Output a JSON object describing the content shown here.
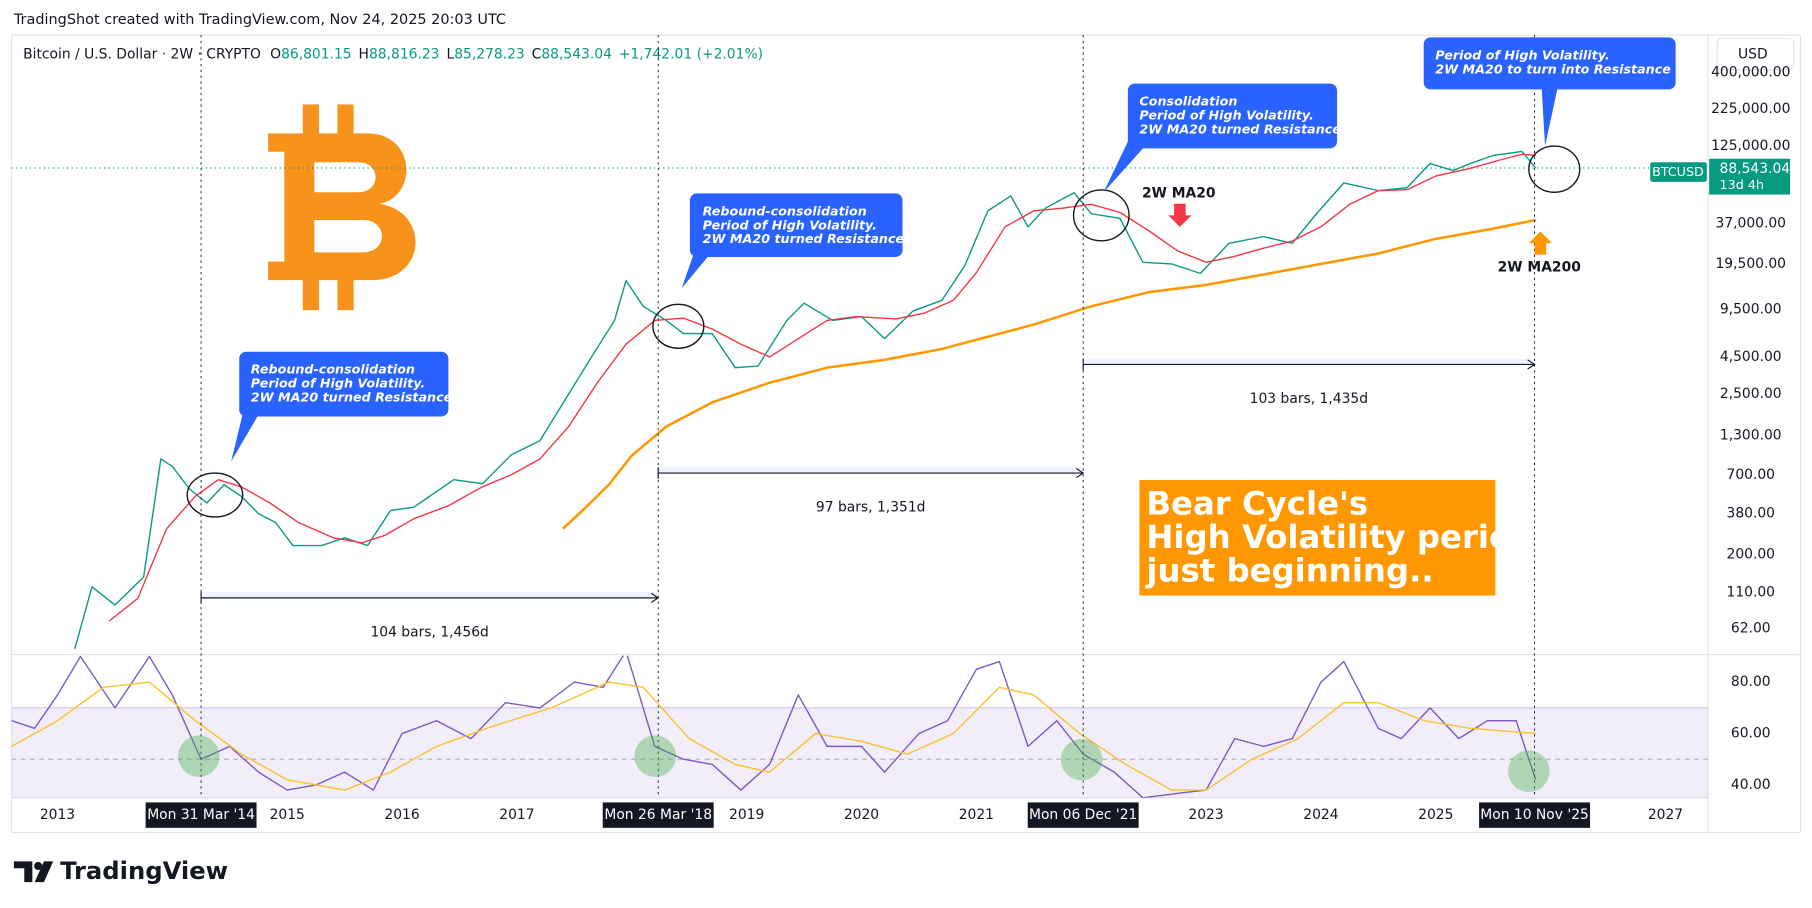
{
  "header": {
    "watermark": "TradingShot created with TradingView.com, Nov 24, 2025 20:03 UTC",
    "symbol": "Bitcoin / U.S. Dollar · 2W · CRYPTO",
    "ohlc": [
      {
        "key": "O",
        "value": "86,801.15"
      },
      {
        "key": "H",
        "value": "88,816.23"
      },
      {
        "key": "L",
        "value": "85,278.23"
      },
      {
        "key": "C",
        "value": "88,543.04"
      }
    ],
    "change": "+1,742.01 (+2.01%)",
    "currency": "USD"
  },
  "annotations": {
    "callouts": [
      [
        "Rebound-consolidation",
        "Period of High Volatility.",
        "2W MA20 turned Resistance."
      ],
      [
        "Rebound-consolidation",
        "Period of High Volatility.",
        "2W MA20 turned Resistance."
      ],
      [
        "Consolidation",
        "Period of High Volatility.",
        "2W MA20 turned Resistance."
      ],
      [
        "Period of High Volatility.",
        "2W MA20 to turn into Resistance ??"
      ]
    ],
    "ranges": [
      "104 bars, 1,456d",
      "97 bars, 1,351d",
      "103 bars, 1,435d"
    ],
    "box": [
      "Bear Cycle's",
      "High Volatility period",
      "just beginning.."
    ],
    "countdown": "13d 4h"
  },
  "footer": {
    "brand": "TradingView"
  },
  "chart_data": [
    {
      "type": "line",
      "scale": "log",
      "grid": false,
      "xlim": [
        2012.6,
        2027.37
      ],
      "xticks": [
        2013,
        2015,
        2016,
        2017,
        2019,
        2020,
        2021,
        2023,
        2024,
        2025,
        2027
      ],
      "xmarkers": [
        {
          "value": 2014.25,
          "label": "Mon 31 Mar '14"
        },
        {
          "value": 2018.23,
          "label": "Mon 26 Mar '18"
        },
        {
          "value": 2021.93,
          "label": "Mon 06 Dec '21"
        },
        {
          "value": 2025.86,
          "label": "Mon 10 Nov '25"
        }
      ],
      "ylim": [
        42,
        720000
      ],
      "yticks": [
        {
          "value": 62,
          "label": "62.00"
        },
        {
          "value": 110,
          "label": "110.00"
        },
        {
          "value": 200,
          "label": "200.00"
        },
        {
          "value": 380,
          "label": "380.00"
        },
        {
          "value": 700,
          "label": "700.00"
        },
        {
          "value": 1300,
          "label": "1,300.00"
        },
        {
          "value": 2500,
          "label": "2,500.00"
        },
        {
          "value": 4500,
          "label": "4,500.00"
        },
        {
          "value": 9500,
          "label": "9,500.00"
        },
        {
          "value": 19500,
          "label": "19,500.00"
        },
        {
          "value": 37000,
          "label": "37,000.00"
        },
        {
          "value": 125000,
          "label": "125,000.00"
        },
        {
          "value": 225000,
          "label": "225,000.00"
        },
        {
          "value": 400000,
          "label": "400,000.00"
        }
      ],
      "last_price": {
        "value": 88543.04,
        "label": "88,543.04"
      },
      "series": [
        {
          "name": "BTCUSD",
          "color": "#089981",
          "x": [
            2013.15,
            2013.3,
            2013.5,
            2013.75,
            2013.9,
            2014.0,
            2014.15,
            2014.3,
            2014.45,
            2014.6,
            2014.75,
            2014.9,
            2015.05,
            2015.3,
            2015.5,
            2015.7,
            2015.9,
            2016.1,
            2016.45,
            2016.7,
            2016.95,
            2017.2,
            2017.45,
            2017.65,
            2017.85,
            2017.95,
            2018.1,
            2018.3,
            2018.45,
            2018.7,
            2018.9,
            2019.1,
            2019.35,
            2019.5,
            2019.75,
            2020.0,
            2020.2,
            2020.45,
            2020.7,
            2020.9,
            2021.1,
            2021.3,
            2021.45,
            2021.6,
            2021.85,
            2022.0,
            2022.25,
            2022.45,
            2022.7,
            2022.95,
            2023.2,
            2023.5,
            2023.75,
            2023.95,
            2024.2,
            2024.5,
            2024.75,
            2024.95,
            2025.15,
            2025.3,
            2025.5,
            2025.75,
            2025.87
          ],
          "values": [
            45,
            120,
            90,
            140,
            900,
            800,
            560,
            450,
            600,
            500,
            380,
            330,
            230,
            230,
            260,
            230,
            400,
            420,
            650,
            610,
            960,
            1200,
            2500,
            4500,
            8000,
            15000,
            10000,
            8000,
            6500,
            6500,
            3800,
            3900,
            8000,
            10500,
            8000,
            8500,
            6000,
            9300,
            11000,
            19000,
            45000,
            57000,
            35000,
            47000,
            60000,
            43000,
            40000,
            20000,
            19500,
            16800,
            27000,
            30000,
            27000,
            42000,
            70000,
            62000,
            65000,
            95000,
            85000,
            95000,
            108000,
            115000,
            88543
          ]
        },
        {
          "name": "2W MA20",
          "color": "#f23645",
          "x": [
            2013.45,
            2013.7,
            2013.95,
            2014.2,
            2014.4,
            2014.6,
            2014.85,
            2015.1,
            2015.4,
            2015.65,
            2015.85,
            2016.1,
            2016.4,
            2016.7,
            2016.95,
            2017.2,
            2017.45,
            2017.7,
            2017.95,
            2018.2,
            2018.45,
            2018.7,
            2018.95,
            2019.2,
            2019.45,
            2019.7,
            2019.95,
            2020.3,
            2020.55,
            2020.8,
            2021.0,
            2021.25,
            2021.5,
            2021.75,
            2022.0,
            2022.25,
            2022.5,
            2022.75,
            2023.0,
            2023.25,
            2023.5,
            2023.75,
            2024.0,
            2024.25,
            2024.5,
            2024.75,
            2025.0,
            2025.3,
            2025.55,
            2025.75,
            2025.87
          ],
          "values": [
            70,
            100,
            300,
            500,
            650,
            580,
            450,
            330,
            260,
            240,
            270,
            350,
            430,
            580,
            700,
            900,
            1500,
            3000,
            5500,
            8000,
            8300,
            7000,
            5500,
            4500,
            6000,
            8000,
            8500,
            8200,
            9000,
            11000,
            17000,
            35000,
            45000,
            47000,
            50000,
            44000,
            33000,
            24000,
            20000,
            22000,
            25000,
            28000,
            35000,
            50000,
            62000,
            63000,
            78000,
            88000,
            100000,
            110000,
            108000
          ]
        },
        {
          "name": "2W MA200",
          "color": "#ff9800",
          "x": [
            2017.4,
            2017.6,
            2017.8,
            2018.0,
            2018.3,
            2018.7,
            2019.2,
            2019.7,
            2020.2,
            2020.7,
            2021.0,
            2021.5,
            2022.0,
            2022.5,
            2023.0,
            2023.5,
            2024.0,
            2024.5,
            2025.0,
            2025.5,
            2025.87
          ],
          "values": [
            300,
            420,
            600,
            950,
            1500,
            2200,
            3000,
            3800,
            4300,
            5100,
            5900,
            7500,
            10000,
            12500,
            14000,
            16500,
            19500,
            23000,
            29000,
            34000,
            39000
          ]
        }
      ]
    },
    {
      "type": "line",
      "scale": "linear",
      "grid": false,
      "ylim": [
        35,
        90.3
      ],
      "yticks": [
        {
          "value": 40,
          "label": "40.00"
        },
        {
          "value": 60,
          "label": "60.00"
        },
        {
          "value": 80,
          "label": "80.00"
        }
      ],
      "band": [
        30,
        70
      ],
      "midline": 50,
      "series": [
        {
          "color": "#7e57c2",
          "x": [
            2012.6,
            2012.8,
            2013.0,
            2013.2,
            2013.5,
            2013.8,
            2014.0,
            2014.25,
            2014.5,
            2014.75,
            2015.0,
            2015.25,
            2015.5,
            2015.75,
            2016.0,
            2016.3,
            2016.6,
            2016.9,
            2017.2,
            2017.5,
            2017.75,
            2017.95,
            2018.2,
            2018.45,
            2018.7,
            2018.95,
            2019.2,
            2019.45,
            2019.7,
            2020.0,
            2020.2,
            2020.5,
            2020.75,
            2021.0,
            2021.2,
            2021.45,
            2021.7,
            2021.93,
            2022.2,
            2022.45,
            2022.8,
            2023.0,
            2023.25,
            2023.5,
            2023.75,
            2024.0,
            2024.2,
            2024.5,
            2024.7,
            2024.95,
            2025.2,
            2025.45,
            2025.7,
            2025.87
          ],
          "values": [
            65,
            62,
            75,
            90,
            70,
            90,
            75,
            50,
            55,
            45,
            38,
            40,
            45,
            38,
            60,
            65,
            58,
            72,
            70,
            80,
            78,
            92,
            55,
            50,
            48,
            38,
            48,
            75,
            55,
            55,
            45,
            60,
            65,
            85,
            88,
            55,
            65,
            52,
            45,
            35,
            37,
            38,
            58,
            55,
            58,
            80,
            88,
            62,
            58,
            70,
            58,
            65,
            65,
            42
          ]
        },
        {
          "color": "#fbc02d",
          "x": [
            2012.6,
            2013.0,
            2013.4,
            2013.8,
            2014.2,
            2014.6,
            2015.0,
            2015.5,
            2015.9,
            2016.3,
            2016.8,
            2017.3,
            2017.8,
            2018.1,
            2018.5,
            2018.9,
            2019.2,
            2019.6,
            2020.0,
            2020.4,
            2020.8,
            2021.2,
            2021.5,
            2021.9,
            2022.3,
            2022.7,
            2023.0,
            2023.4,
            2023.8,
            2024.2,
            2024.5,
            2024.9,
            2025.3,
            2025.87
          ],
          "values": [
            55,
            65,
            78,
            80,
            65,
            52,
            42,
            38,
            45,
            55,
            63,
            70,
            80,
            78,
            58,
            48,
            45,
            60,
            57,
            52,
            60,
            78,
            75,
            60,
            48,
            38,
            38,
            50,
            58,
            72,
            72,
            65,
            62,
            60
          ]
        }
      ]
    }
  ]
}
